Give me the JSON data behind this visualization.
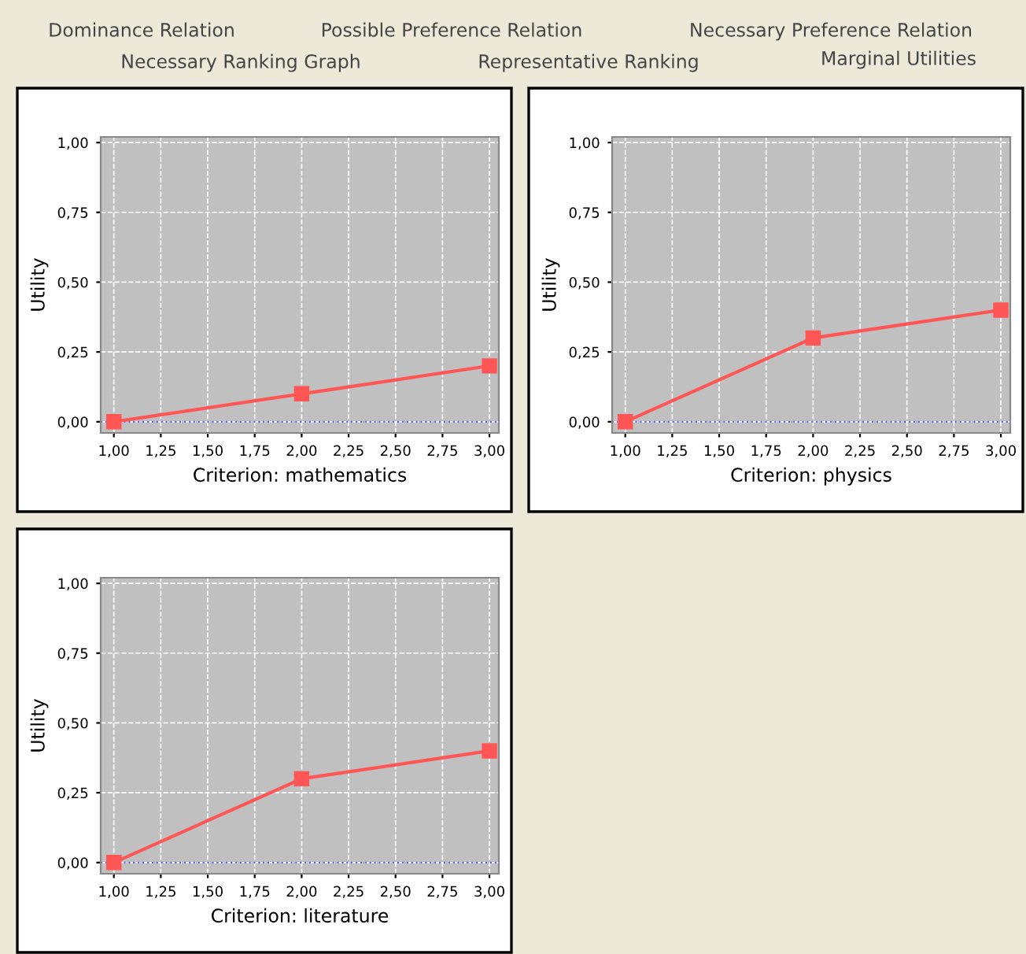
{
  "chart_data": [
    {
      "type": "line",
      "xlabel": "Criterion: mathematics",
      "ylabel": "Utility",
      "x": [
        1,
        2,
        3
      ],
      "series": [
        {
          "color": "#ff5555",
          "values": [
            0,
            0.1,
            0.2
          ]
        }
      ],
      "marker": "square",
      "grid": true,
      "xlim": [
        0.93,
        3.05
      ],
      "ylim": [
        -0.04,
        1.02
      ],
      "xticks": [
        {
          "value": 1,
          "label": "1,00"
        },
        {
          "value": 1.25,
          "label": "1,25"
        },
        {
          "value": 1.5,
          "label": "1,50"
        },
        {
          "value": 1.75,
          "label": "1,75"
        },
        {
          "value": 2,
          "label": "2,00"
        },
        {
          "value": 2.25,
          "label": "2,25"
        },
        {
          "value": 2.5,
          "label": "2,50"
        },
        {
          "value": 2.75,
          "label": "2,75"
        },
        {
          "value": 3,
          "label": "3,00"
        }
      ],
      "yticks": [
        {
          "value": 0,
          "label": "0,00"
        },
        {
          "value": 0.25,
          "label": "0,25"
        },
        {
          "value": 0.5,
          "label": "0,50"
        },
        {
          "value": 0.75,
          "label": "0,75"
        },
        {
          "value": 1,
          "label": "1,00"
        }
      ],
      "ref_lines": [
        {
          "axis": "y",
          "value": 0,
          "color": "#6666ff",
          "line_style": "dotted"
        }
      ],
      "annotations": [
        "Dominance Relation",
        "Possible Preference Relation",
        "Necessary Preference Relation",
        "Necessary Ranking Graph",
        "Representative Ranking",
        "Marginal Utilities"
      ]
    },
    {
      "type": "line",
      "xlabel": "Criterion: physics",
      "ylabel": "Utility",
      "x": [
        1,
        2,
        3
      ],
      "series": [
        {
          "color": "#ff5555",
          "values": [
            0,
            0.3,
            0.4
          ]
        }
      ],
      "marker": "square",
      "grid": true,
      "xlim": [
        0.93,
        3.05
      ],
      "ylim": [
        -0.04,
        1.02
      ],
      "xticks": [
        {
          "value": 1,
          "label": "1,00"
        },
        {
          "value": 1.25,
          "label": "1,25"
        },
        {
          "value": 1.5,
          "label": "1,50"
        },
        {
          "value": 1.75,
          "label": "1,75"
        },
        {
          "value": 2,
          "label": "2,00"
        },
        {
          "value": 2.25,
          "label": "2,25"
        },
        {
          "value": 2.5,
          "label": "2,50"
        },
        {
          "value": 2.75,
          "label": "2,75"
        },
        {
          "value": 3,
          "label": "3,00"
        }
      ],
      "yticks": [
        {
          "value": 0,
          "label": "0,00"
        },
        {
          "value": 0.25,
          "label": "0,25"
        },
        {
          "value": 0.5,
          "label": "0,50"
        },
        {
          "value": 0.75,
          "label": "0,75"
        },
        {
          "value": 1,
          "label": "1,00"
        }
      ],
      "ref_lines": [
        {
          "axis": "y",
          "value": 0,
          "color": "#6666ff",
          "line_style": "dotted"
        }
      ]
    },
    {
      "type": "line",
      "xlabel": "Criterion: literature",
      "ylabel": "Utility",
      "x": [
        1,
        2,
        3
      ],
      "series": [
        {
          "color": "#ff5555",
          "values": [
            0,
            0.3,
            0.4
          ]
        }
      ],
      "marker": "square",
      "grid": true,
      "xlim": [
        0.93,
        3.05
      ],
      "ylim": [
        -0.04,
        1.02
      ],
      "xticks": [
        {
          "value": 1,
          "label": "1,00"
        },
        {
          "value": 1.25,
          "label": "1,25"
        },
        {
          "value": 1.5,
          "label": "1,50"
        },
        {
          "value": 1.75,
          "label": "1,75"
        },
        {
          "value": 2,
          "label": "2,00"
        },
        {
          "value": 2.25,
          "label": "2,25"
        },
        {
          "value": 2.5,
          "label": "2,50"
        },
        {
          "value": 2.75,
          "label": "2,75"
        },
        {
          "value": 3,
          "label": "3,00"
        }
      ],
      "yticks": [
        {
          "value": 0,
          "label": "0,00"
        },
        {
          "value": 0.25,
          "label": "0,25"
        },
        {
          "value": 0.5,
          "label": "0,50"
        },
        {
          "value": 0.75,
          "label": "0,75"
        },
        {
          "value": 1,
          "label": "1,00"
        }
      ],
      "ref_lines": [
        {
          "axis": "y",
          "value": 0,
          "color": "#6666ff",
          "line_style": "dotted"
        }
      ]
    }
  ]
}
